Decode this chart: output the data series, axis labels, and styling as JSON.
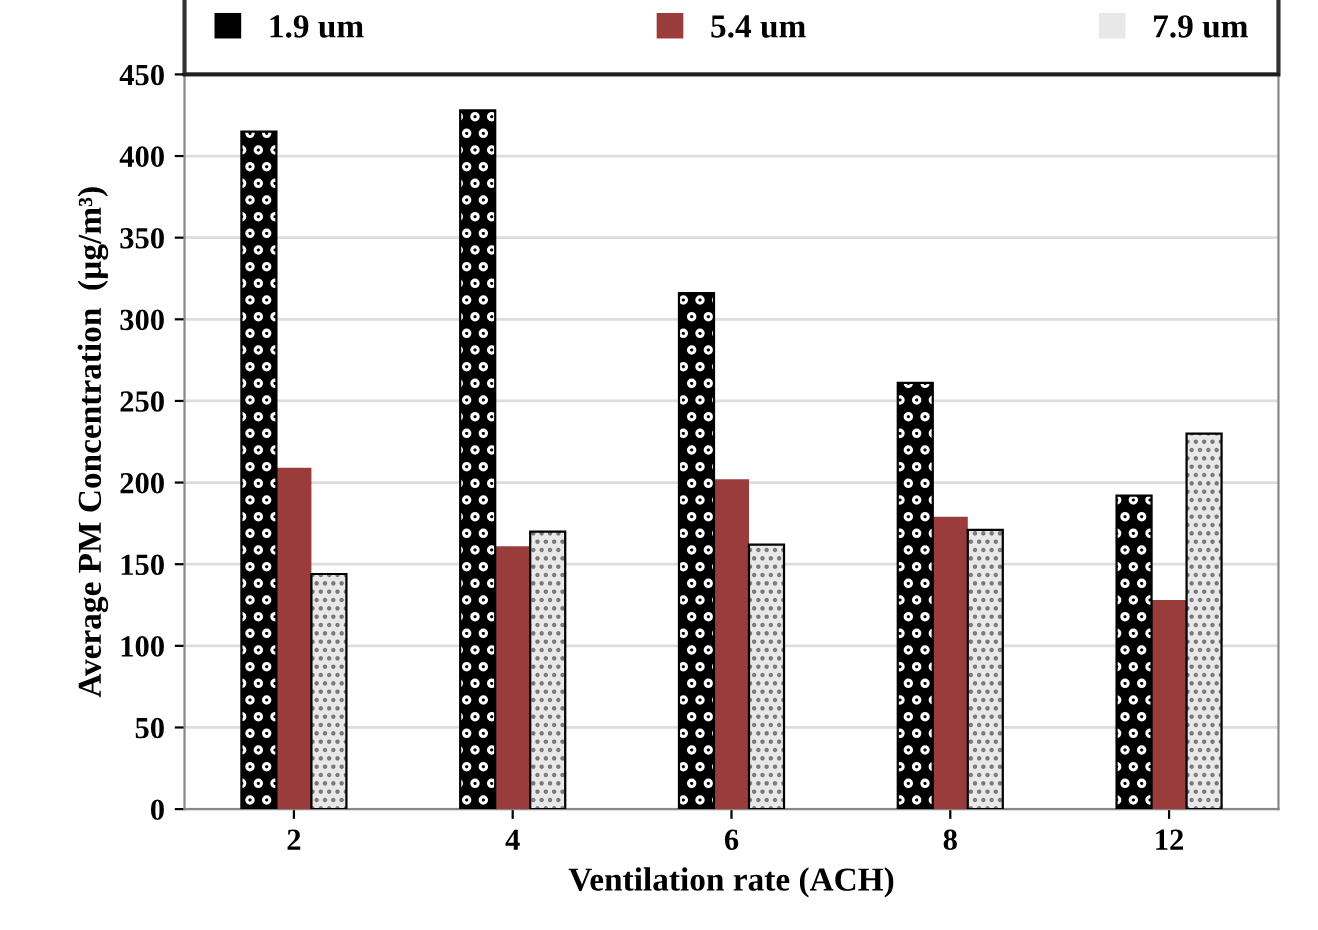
{
  "chart_data": {
    "type": "bar",
    "xlabel": "Ventilation rate (ACH)",
    "ylabel": "Average PM Concentration  (µg/m³)",
    "categories": [
      "2",
      "4",
      "6",
      "8",
      "12"
    ],
    "series": [
      {
        "name": "1.9 um",
        "color": "#000000",
        "values": [
          415,
          428,
          316,
          261,
          192
        ]
      },
      {
        "name": "5.4 um",
        "color": "#9b3c3c",
        "values": [
          209,
          161,
          202,
          179,
          128
        ]
      },
      {
        "name": "7.9 um",
        "color": "#e8e8e8",
        "values": [
          144,
          170,
          162,
          171,
          230
        ]
      }
    ],
    "ylim": [
      0,
      450
    ],
    "yticks": [
      0,
      50,
      100,
      150,
      200,
      250,
      300,
      350,
      400,
      450
    ],
    "grid": "y",
    "legend": "top"
  }
}
